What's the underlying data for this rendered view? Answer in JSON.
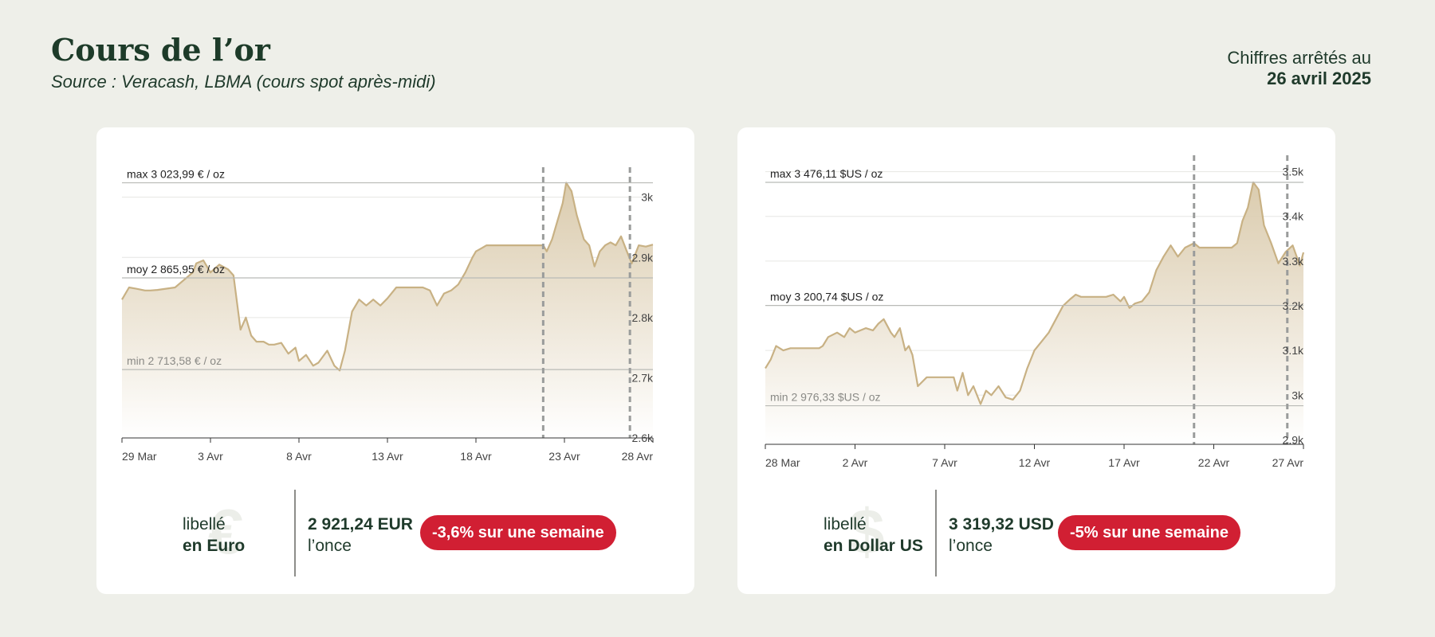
{
  "header": {
    "title": "Cours de l’or",
    "subtitle": "Source : Veracash, LBMA (cours spot après-midi)",
    "asof_label": "Chiffres arrêtés au",
    "asof_date": "26 avril 2025"
  },
  "colors": {
    "line": "#c8b184",
    "fill_top": "#d9c9aa",
    "badge": "#d11f33",
    "marker": "#9a9c9b"
  },
  "chart_data": [
    {
      "type": "area",
      "currency_label": "libellé",
      "currency_name": "en Euro",
      "currency_icon": "euro-icon",
      "ylim": [
        2600,
        3030
      ],
      "y_ticks": [
        2600,
        2700,
        2800,
        2900,
        3000
      ],
      "y_tick_labels": [
        "2.6k",
        "2.7k",
        "2.8k",
        "2.9k",
        "3k"
      ],
      "x_tick_labels": [
        "29 Mar",
        "3 Avr",
        "8 Avr",
        "13 Avr",
        "18 Avr",
        "23 Avr",
        "28 Avr"
      ],
      "x_tick_days": [
        0,
        5,
        10,
        15,
        20,
        25,
        30
      ],
      "x_range_days": [
        0,
        30
      ],
      "markers_days": [
        23.8,
        28.7
      ],
      "ref_lines": [
        {
          "value": 3023.99,
          "label": "max 3 023,99 € / oz"
        },
        {
          "value": 2865.95,
          "label": "moy 2 865,95 € / oz"
        },
        {
          "value": 2713.58,
          "label": "min 2 713,58 € / oz"
        }
      ],
      "x": [
        0,
        0.4,
        0.8,
        1.3,
        1.6,
        2,
        3,
        4,
        4.2,
        4.6,
        5,
        5.5,
        6,
        6.3,
        6.7,
        7,
        7.3,
        7.6,
        8,
        8.3,
        8.6,
        9,
        9.4,
        9.8,
        10,
        10.4,
        10.8,
        11.1,
        11.6,
        12,
        12.3,
        12.6,
        13,
        13.4,
        13.8,
        14.2,
        14.6,
        15,
        15.5,
        16,
        16.3,
        16.7,
        17,
        17.4,
        17.8,
        18.2,
        18.6,
        19,
        19.4,
        19.8,
        20,
        20.3,
        20.6,
        21,
        21.4,
        21.8,
        22.2,
        22.6,
        23,
        23.4,
        23.8,
        24,
        24.3,
        24.6,
        24.9,
        25.1,
        25.4,
        25.7,
        26.1,
        26.4,
        26.7,
        27,
        27.3,
        27.6,
        27.9,
        28.2,
        28.5,
        28.8,
        29.2,
        29.6,
        30
      ],
      "y": [
        2830,
        2850,
        2848,
        2845,
        2845,
        2846,
        2850,
        2875,
        2890,
        2895,
        2875,
        2888,
        2880,
        2870,
        2780,
        2800,
        2770,
        2760,
        2760,
        2755,
        2755,
        2758,
        2740,
        2750,
        2728,
        2738,
        2720,
        2725,
        2745,
        2720,
        2712,
        2745,
        2810,
        2830,
        2820,
        2830,
        2820,
        2832,
        2850,
        2850,
        2850,
        2850,
        2850,
        2845,
        2820,
        2840,
        2845,
        2855,
        2875,
        2900,
        2910,
        2915,
        2920,
        2920,
        2920,
        2920,
        2920,
        2920,
        2920,
        2920,
        2920,
        2910,
        2930,
        2960,
        2990,
        3023.99,
        3010,
        2970,
        2930,
        2920,
        2885,
        2910,
        2920,
        2925,
        2920,
        2935,
        2912,
        2890,
        2920,
        2918,
        2921.24
      ],
      "current_price": "2 921,24 EUR",
      "unit": "l’once",
      "change": "-3,6% sur une semaine"
    },
    {
      "type": "area",
      "currency_label": "libellé",
      "currency_name": "en Dollar US",
      "currency_icon": "dollar-icon",
      "ylim": [
        2890,
        3510
      ],
      "y_ticks": [
        2900,
        3000,
        3100,
        3200,
        3300,
        3400,
        3500
      ],
      "y_tick_labels": [
        "2.9k",
        "3k",
        "3.1k",
        "3.2k",
        "3.3k",
        "3.4k",
        "3.5k"
      ],
      "x_tick_labels": [
        "28 Mar",
        "2 Avr",
        "7 Avr",
        "12 Avr",
        "17 Avr",
        "22 Avr",
        "27 Avr"
      ],
      "x_tick_days": [
        0,
        5,
        10,
        15,
        20,
        25,
        30
      ],
      "x_range_days": [
        0,
        30
      ],
      "markers_days": [
        23.9,
        29.1
      ],
      "ref_lines": [
        {
          "value": 3476.11,
          "label": "max 3 476,11 $US / oz"
        },
        {
          "value": 3200.74,
          "label": "moy 3 200,74 $US / oz"
        },
        {
          "value": 2976.33,
          "label": "min 2 976,33 $US / oz"
        }
      ],
      "x": [
        0,
        0.3,
        0.6,
        1,
        1.4,
        2,
        3,
        3.2,
        3.5,
        4,
        4.4,
        4.7,
        5,
        5.3,
        5.6,
        6,
        6.3,
        6.6,
        7,
        7.2,
        7.5,
        7.8,
        8,
        8.2,
        8.5,
        9,
        9.5,
        10,
        10.2,
        10.5,
        10.7,
        11,
        11.3,
        11.6,
        12,
        12.3,
        12.6,
        13,
        13.4,
        13.8,
        14.2,
        14.6,
        15,
        15.4,
        15.8,
        16.2,
        16.6,
        17,
        17.3,
        17.6,
        18,
        18.4,
        18.8,
        19,
        19.4,
        19.8,
        20,
        20.3,
        20.6,
        21,
        21.4,
        21.8,
        22.2,
        22.6,
        23,
        23.4,
        23.9,
        24.2,
        24.5,
        24.8,
        25.1,
        25.4,
        25.7,
        26,
        26.3,
        26.6,
        26.9,
        27.2,
        27.5,
        27.8,
        28.2,
        28.6,
        29,
        29.4,
        29.8,
        30
      ],
      "y": [
        3060,
        3080,
        3110,
        3100,
        3105,
        3105,
        3105,
        3110,
        3130,
        3140,
        3130,
        3150,
        3140,
        3145,
        3150,
        3145,
        3160,
        3170,
        3140,
        3130,
        3150,
        3100,
        3110,
        3090,
        3020,
        3040,
        3040,
        3040,
        3040,
        3040,
        3010,
        3050,
        3000,
        3020,
        2980,
        3010,
        3000,
        3020,
        2995,
        2990,
        3010,
        3060,
        3100,
        3120,
        3140,
        3170,
        3200,
        3215,
        3225,
        3220,
        3220,
        3220,
        3220,
        3220,
        3225,
        3210,
        3220,
        3195,
        3205,
        3210,
        3230,
        3280,
        3310,
        3335,
        3310,
        3330,
        3340,
        3330,
        3330,
        3330,
        3330,
        3330,
        3330,
        3330,
        3340,
        3390,
        3420,
        3476.11,
        3460,
        3380,
        3340,
        3295,
        3320,
        3335,
        3290,
        3319.32
      ],
      "current_price": "3 319,32 USD",
      "unit": "l’once",
      "change": "-5% sur une semaine"
    }
  ]
}
